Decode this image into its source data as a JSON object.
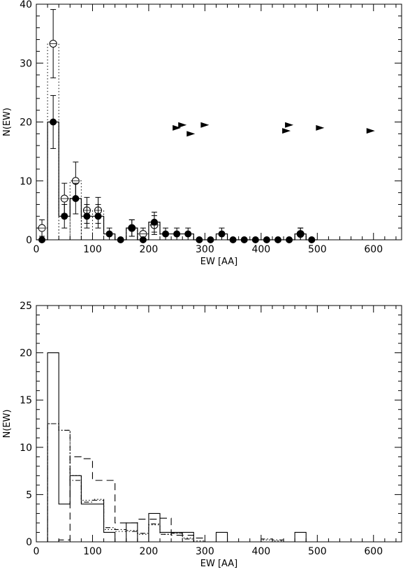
{
  "chart_data": [
    {
      "type": "scatter",
      "xlabel": "EW [AA]",
      "ylabel": "N(EW)",
      "xlim": [
        0,
        650
      ],
      "ylim": [
        0,
        40
      ],
      "xticks": [
        "0",
        "100",
        "200",
        "300",
        "400",
        "500",
        "600"
      ],
      "yticks": [
        "0",
        "10",
        "20",
        "30",
        "40"
      ],
      "series": [
        {
          "style": "solid-step-filled-circles",
          "bin_width": 20,
          "x": [
            10,
            30,
            50,
            70,
            90,
            110,
            130,
            150,
            170,
            190,
            210,
            230,
            250,
            270,
            290,
            310,
            330,
            350,
            370,
            390,
            410,
            430,
            450,
            470,
            490
          ],
          "values": [
            0,
            20,
            4,
            7,
            4,
            4,
            1,
            0,
            2,
            0,
            3,
            1,
            1,
            1,
            0,
            0,
            1,
            0,
            0,
            0,
            0,
            0,
            0,
            1,
            0
          ],
          "errors": [
            0,
            4.5,
            2,
            2.6,
            2,
            2,
            1,
            0,
            1.4,
            0,
            1.7,
            1,
            1,
            1,
            0,
            0,
            1,
            0,
            0,
            0,
            0,
            0,
            0,
            1,
            0
          ]
        },
        {
          "style": "dotted-step-open-circles",
          "bin_width": 20,
          "x": [
            10,
            30,
            50,
            70,
            90,
            110,
            170,
            190,
            210,
            470
          ],
          "values": [
            2,
            33.3,
            7,
            10,
            5,
            5,
            2,
            1,
            2.5,
            1
          ],
          "errors": [
            1.4,
            5.8,
            2.6,
            3.2,
            2.2,
            2.2,
            1.4,
            1,
            1.6,
            1
          ]
        }
      ],
      "lower_limits": {
        "x": [
          250,
          260,
          275,
          300,
          445,
          450,
          505,
          595
        ],
        "y": [
          19,
          19.5,
          18,
          19.5,
          18.5,
          19.5,
          19,
          18.5
        ]
      }
    },
    {
      "type": "bar",
      "xlabel": "EW [AA]",
      "ylabel": "N(EW)",
      "xlim": [
        0,
        650
      ],
      "ylim": [
        0,
        25
      ],
      "xticks": [
        "0",
        "100",
        "200",
        "300",
        "400",
        "500",
        "600"
      ],
      "yticks": [
        "0",
        "5",
        "10",
        "15",
        "20",
        "25"
      ],
      "series": [
        {
          "style": "solid",
          "bin_edges": [
            20,
            40,
            60,
            80,
            100,
            120,
            140,
            160,
            180,
            200,
            220,
            240,
            260,
            280,
            300,
            320,
            340,
            360,
            380,
            400,
            420,
            440,
            460,
            480,
            500
          ],
          "values": [
            20,
            4,
            7,
            4,
            4,
            1,
            0,
            2,
            0,
            3,
            1,
            1,
            1,
            0,
            0,
            1,
            0,
            0,
            0,
            0,
            0,
            0,
            1,
            0
          ]
        },
        {
          "style": "dotted",
          "bin_edges": [
            20,
            40,
            60,
            80,
            100,
            120,
            140,
            160,
            180,
            200,
            220,
            240,
            260,
            280,
            300,
            320,
            340,
            360,
            380,
            400,
            420,
            440,
            460
          ],
          "values": [
            12.5,
            11.8,
            7,
            4.4,
            4.5,
            1.3,
            1.1,
            1.2,
            0.8,
            1.8,
            0.8,
            0.9,
            0.4,
            0.1,
            0,
            0,
            0,
            0,
            0,
            0.2,
            0.1,
            0
          ]
        },
        {
          "style": "dash-dot",
          "bin_edges": [
            20,
            40,
            60,
            80,
            100,
            120,
            140,
            160,
            180,
            200,
            220,
            240,
            260,
            280,
            300,
            320,
            340,
            360,
            380,
            400,
            420,
            440,
            460
          ],
          "values": [
            12.5,
            11.8,
            6.5,
            4.2,
            4.4,
            1.5,
            1.3,
            1.1,
            0.9,
            1.9,
            0.8,
            0.9,
            0.3,
            0,
            0,
            0,
            0,
            0,
            0,
            0.3,
            0.2,
            0
          ]
        },
        {
          "style": "dashed",
          "bin_edges": [
            20,
            40,
            60,
            80,
            100,
            120,
            140,
            160,
            180,
            200,
            220,
            240,
            260,
            280,
            300
          ],
          "values": [
            0,
            0.2,
            9,
            8.8,
            6.5,
            6.5,
            2,
            2,
            2.4,
            2.4,
            2.5,
            0.7,
            0.7,
            0.4
          ]
        }
      ]
    }
  ]
}
